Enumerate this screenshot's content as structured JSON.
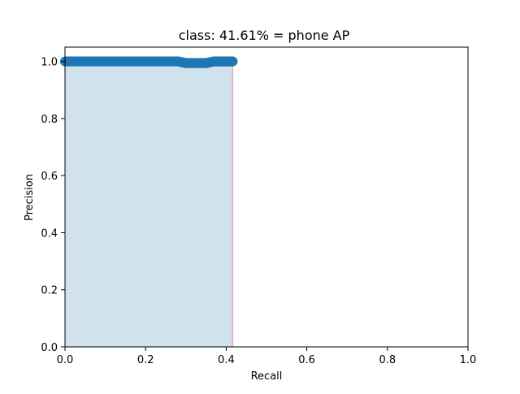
{
  "chart_data": {
    "type": "area",
    "title": "class: 41.61% = phone AP",
    "xlabel": "Recall",
    "ylabel": "Precision",
    "xlim": [
      0.0,
      1.0
    ],
    "ylim": [
      0.0,
      1.05
    ],
    "xticks": [
      0.0,
      0.2,
      0.4,
      0.6,
      0.8,
      1.0
    ],
    "yticks": [
      0.0,
      0.2,
      0.4,
      0.6,
      0.8,
      1.0
    ],
    "xtick_labels": [
      "0.0",
      "0.2",
      "0.4",
      "0.6",
      "0.8",
      "1.0"
    ],
    "ytick_labels": [
      "0.0",
      "0.2",
      "0.4",
      "0.6",
      "0.8",
      "1.0"
    ],
    "grid": false,
    "legend": "none",
    "colors": {
      "line": "#1f77b4",
      "fill": "#d1e2ef",
      "edge": "#e8a4b8"
    },
    "series": [
      {
        "x": [
          0.0,
          0.02,
          0.04,
          0.06,
          0.08,
          0.1,
          0.12,
          0.14,
          0.16,
          0.18,
          0.2,
          0.22,
          0.24,
          0.26,
          0.28,
          0.29,
          0.3,
          0.31,
          0.32,
          0.33,
          0.34,
          0.35,
          0.36,
          0.37,
          0.38,
          0.39,
          0.4,
          0.41,
          0.4161
        ],
        "y": [
          1.0,
          1.0,
          1.0,
          1.0,
          1.0,
          1.0,
          1.0,
          1.0,
          1.0,
          1.0,
          1.0,
          1.0,
          1.0,
          1.0,
          1.0,
          0.997,
          0.994,
          0.994,
          0.994,
          0.994,
          0.994,
          0.994,
          0.997,
          1.0,
          1.0,
          1.0,
          1.0,
          1.0,
          1.0
        ]
      }
    ]
  }
}
